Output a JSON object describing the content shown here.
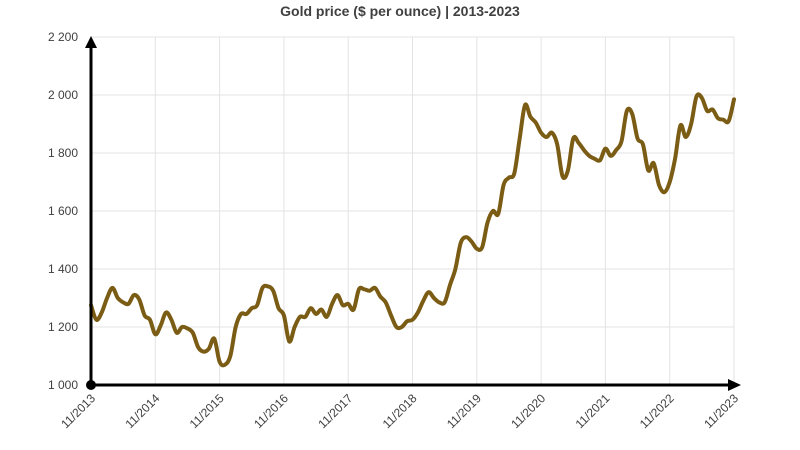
{
  "chart_data": {
    "type": "line",
    "title": "Gold price ($ per ounce) | 2013-2023",
    "xlabel": "",
    "ylabel": "",
    "x_tick_labels": [
      "11/2013",
      "11/2014",
      "11/2015",
      "11/2016",
      "11/2017",
      "11/2018",
      "11/2019",
      "11/2020",
      "11/2021",
      "11/2022",
      "11/2023"
    ],
    "y_tick_labels": [
      "1 000",
      "1 200",
      "1 400",
      "1 600",
      "1 800",
      "2 000",
      "2 200"
    ],
    "xlim": [
      "11/2013",
      "11/2023"
    ],
    "ylim": [
      1000,
      2200
    ],
    "grid": true,
    "line_color": "#7b5c14",
    "series": [
      {
        "x": [
          "11/2013",
          "12/2013",
          "01/2014",
          "02/2014",
          "03/2014",
          "04/2014",
          "05/2014",
          "06/2014",
          "07/2014",
          "08/2014",
          "09/2014",
          "10/2014",
          "11/2014",
          "12/2014",
          "01/2015",
          "02/2015",
          "03/2015",
          "04/2015",
          "05/2015",
          "06/2015",
          "07/2015",
          "08/2015",
          "09/2015",
          "10/2015",
          "11/2015",
          "12/2015",
          "01/2016",
          "02/2016",
          "03/2016",
          "04/2016",
          "05/2016",
          "06/2016",
          "07/2016",
          "08/2016",
          "09/2016",
          "10/2016",
          "11/2016",
          "12/2016",
          "01/2017",
          "02/2017",
          "03/2017",
          "04/2017",
          "05/2017",
          "06/2017",
          "07/2017",
          "08/2017",
          "09/2017",
          "10/2017",
          "11/2017",
          "12/2017",
          "01/2018",
          "02/2018",
          "03/2018",
          "04/2018",
          "05/2018",
          "06/2018",
          "07/2018",
          "08/2018",
          "09/2018",
          "10/2018",
          "11/2018",
          "12/2018",
          "01/2019",
          "02/2019",
          "03/2019",
          "04/2019",
          "05/2019",
          "06/2019",
          "07/2019",
          "08/2019",
          "09/2019",
          "10/2019",
          "11/2019",
          "12/2019",
          "01/2020",
          "02/2020",
          "03/2020",
          "04/2020",
          "05/2020",
          "06/2020",
          "07/2020",
          "08/2020",
          "09/2020",
          "10/2020",
          "11/2020",
          "12/2020",
          "01/2021",
          "02/2021",
          "03/2021",
          "04/2021",
          "05/2021",
          "06/2021",
          "07/2021",
          "08/2021",
          "09/2021",
          "10/2021",
          "11/2021",
          "12/2021",
          "01/2022",
          "02/2022",
          "03/2022",
          "04/2022",
          "05/2022",
          "06/2022",
          "07/2022",
          "08/2022",
          "09/2022",
          "10/2022",
          "11/2022",
          "12/2022",
          "01/2023",
          "02/2023",
          "03/2023",
          "04/2023",
          "05/2023",
          "06/2023",
          "07/2023",
          "08/2023",
          "09/2023",
          "10/2023",
          "11/2023"
        ],
        "values": [
          1275,
          1225,
          1250,
          1300,
          1335,
          1300,
          1285,
          1280,
          1310,
          1295,
          1240,
          1225,
          1175,
          1205,
          1250,
          1225,
          1180,
          1200,
          1195,
          1180,
          1130,
          1115,
          1125,
          1160,
          1080,
          1070,
          1100,
          1200,
          1245,
          1245,
          1265,
          1275,
          1335,
          1340,
          1325,
          1265,
          1240,
          1150,
          1200,
          1235,
          1235,
          1265,
          1245,
          1260,
          1235,
          1280,
          1310,
          1275,
          1280,
          1260,
          1330,
          1330,
          1325,
          1335,
          1305,
          1285,
          1240,
          1200,
          1200,
          1220,
          1225,
          1250,
          1290,
          1320,
          1300,
          1285,
          1285,
          1345,
          1400,
          1490,
          1510,
          1495,
          1470,
          1475,
          1560,
          1600,
          1590,
          1690,
          1715,
          1730,
          1850,
          1965,
          1925,
          1905,
          1870,
          1855,
          1870,
          1830,
          1720,
          1740,
          1850,
          1835,
          1810,
          1790,
          1780,
          1775,
          1815,
          1790,
          1810,
          1840,
          1945,
          1935,
          1850,
          1830,
          1740,
          1765,
          1690,
          1665,
          1700,
          1780,
          1895,
          1855,
          1900,
          1995,
          1990,
          1945,
          1950,
          1920,
          1915,
          1910,
          1985
        ]
      }
    ]
  }
}
